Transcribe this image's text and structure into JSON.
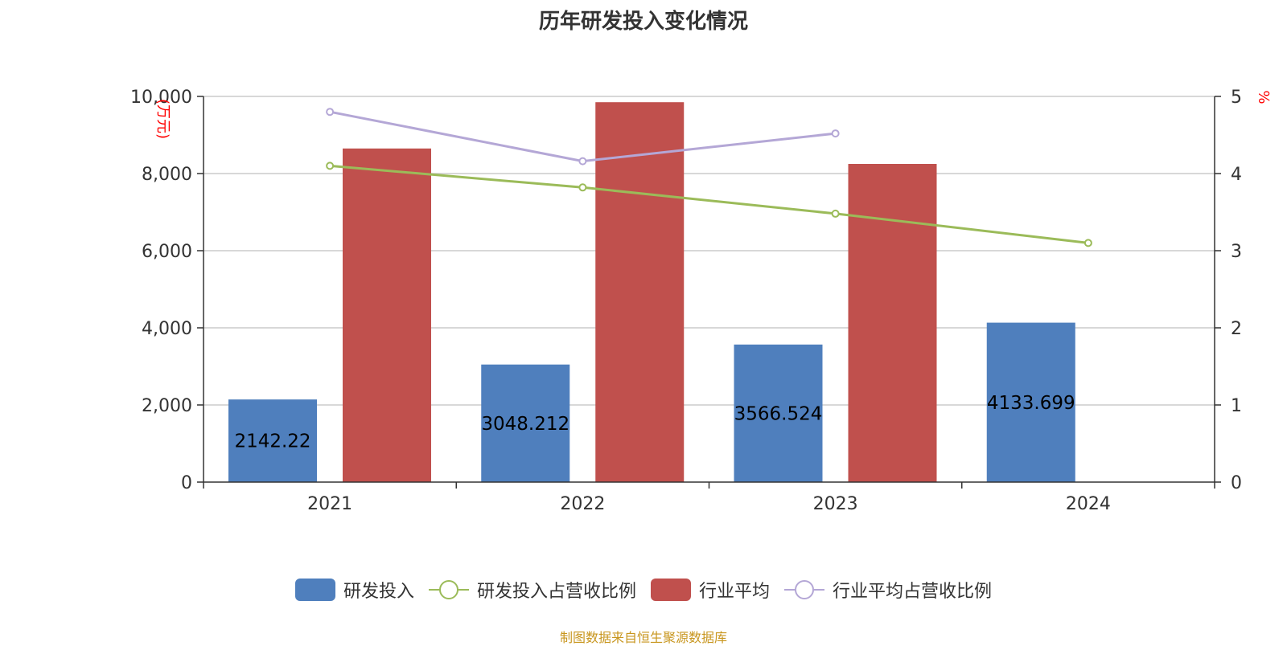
{
  "title": "历年研发投入变化情况",
  "source_note": "制图数据来自恒生聚源数据库",
  "colors": {
    "rd_investment": "#4f7fbd",
    "industry_avg": "#c0504d",
    "rd_ratio": "#9bbb59",
    "industry_ratio": "#b4a7d6",
    "axis_unit": "#ff0000",
    "text": "#333333",
    "grid": "#cccccc"
  },
  "legend": [
    {
      "label": "研发投入",
      "kind": "bar",
      "color": "#4f7fbd"
    },
    {
      "label": "研发投入占营收比例",
      "kind": "line",
      "color": "#9bbb59"
    },
    {
      "label": "行业平均",
      "kind": "bar",
      "color": "#c0504d"
    },
    {
      "label": "行业平均占营收比例",
      "kind": "line",
      "color": "#b4a7d6"
    }
  ],
  "chart_data": {
    "type": "bar",
    "title": "历年研发投入变化情况",
    "categories": [
      "2021",
      "2022",
      "2023",
      "2024"
    ],
    "y_left": {
      "label": "万元",
      "ticks": [
        "0",
        "2,000",
        "4,000",
        "6,000",
        "8,000",
        "10,000"
      ],
      "ylim": [
        0,
        10000
      ]
    },
    "y_right": {
      "label": "%",
      "ticks": [
        "0",
        "1",
        "2",
        "3",
        "4",
        "5"
      ],
      "ylim": [
        0,
        5
      ]
    },
    "grid": true,
    "legend_position": "bottom",
    "series": [
      {
        "name": "研发投入",
        "type": "bar",
        "axis": "left",
        "values": [
          2142.22,
          3048.212,
          3566.524,
          4133.699
        ],
        "labels": [
          "2142.22",
          "3048.212",
          "3566.524",
          "4133.699"
        ]
      },
      {
        "name": "行业平均",
        "type": "bar",
        "axis": "left",
        "values": [
          8650,
          9850,
          8250,
          null
        ]
      },
      {
        "name": "研发投入占营收比例",
        "type": "line",
        "axis": "right",
        "values": [
          4.1,
          3.82,
          3.48,
          3.1
        ]
      },
      {
        "name": "行业平均占营收比例",
        "type": "line",
        "axis": "right",
        "values": [
          4.8,
          4.16,
          4.52,
          null
        ]
      }
    ]
  }
}
